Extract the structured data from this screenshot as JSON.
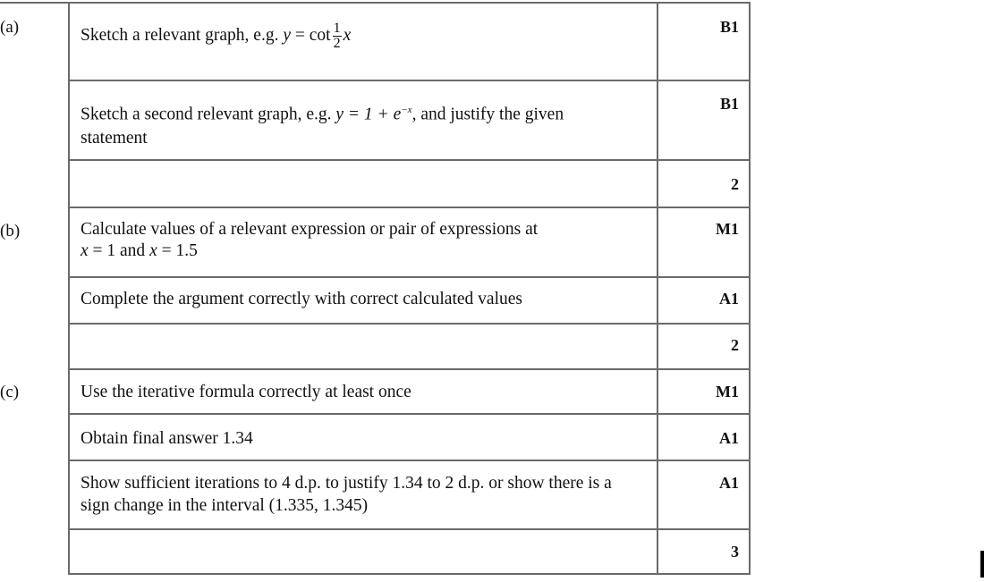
{
  "parts": {
    "a": "(a)",
    "b": "(b)",
    "c": "(c)"
  },
  "rows": [
    {
      "text_prefix": "Sketch a relevant graph, e.g. ",
      "math_y": "y",
      "math_eq": " = cot",
      "frac_num": "1",
      "frac_den": "2",
      "math_x": "x",
      "mark": "B1"
    },
    {
      "text_prefix": "Sketch a second relevant graph, e.g. ",
      "math": "y = 1 + e",
      "exp": "−x",
      "text_suffix": ", and justify the given statement",
      "mark": "B1"
    },
    {
      "mark": "2"
    },
    {
      "text": "Calculate values of a relevant expression or pair of expressions at",
      "line2_x1": "x",
      "line2_mid": " = 1 and ",
      "line2_x2": "x",
      "line2_end": " = 1.5",
      "mark": "M1"
    },
    {
      "text": "Complete the argument correctly with correct calculated values",
      "mark": "A1"
    },
    {
      "mark": "2"
    },
    {
      "text": "Use the iterative formula correctly at least once",
      "mark": "M1"
    },
    {
      "text": "Obtain final answer 1.34",
      "mark": "A1"
    },
    {
      "text": "Show sufficient iterations to 4 d.p. to justify 1.34 to 2 d.p. or show there is a sign change in the interval (1.335, 1.345)",
      "mark": "A1"
    },
    {
      "mark": "3"
    }
  ]
}
